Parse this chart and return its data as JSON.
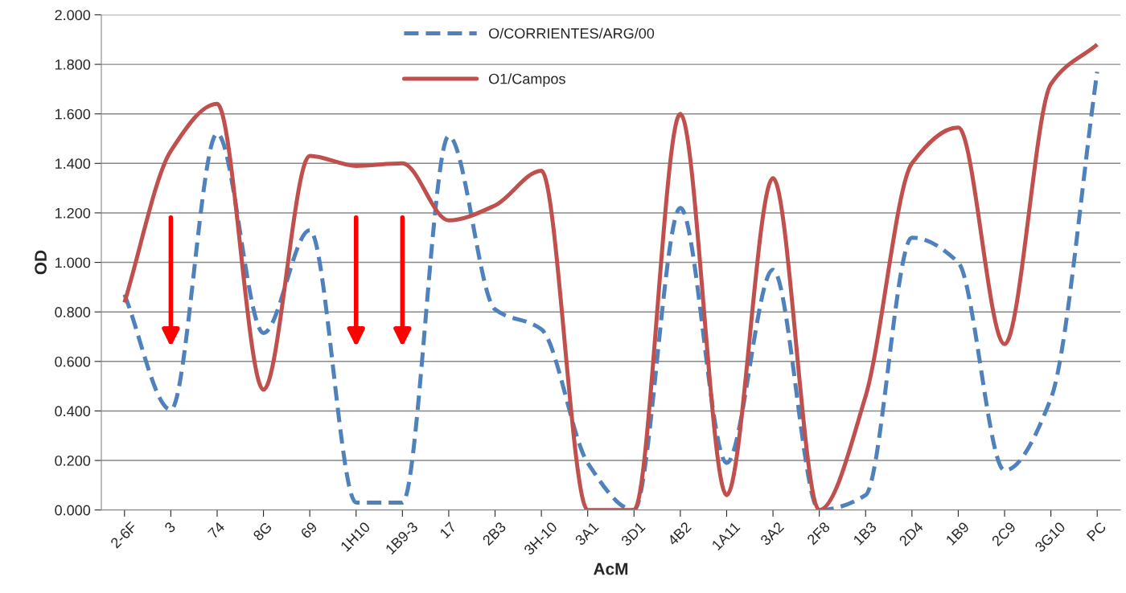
{
  "chart_data": {
    "type": "line",
    "xlabel": "AcM",
    "ylabel": "OD",
    "categories": [
      "2-6F",
      "3",
      "74",
      "8G",
      "69",
      "1H10",
      "1B9-3",
      "17",
      "2B3",
      "3H-10",
      "3A1",
      "3D1",
      "4B2",
      "1A11",
      "3A2",
      "2F8",
      "1B3",
      "2D4",
      "1B9",
      "2C9",
      "3G10",
      "PC"
    ],
    "series": [
      {
        "name": "O/CORRIENTES/ARG/00",
        "color": "#4f81bd",
        "line_style": "dashed",
        "values": [
          0.87,
          0.405,
          1.52,
          0.715,
          1.13,
          0.03,
          0.03,
          1.51,
          0.81,
          0.73,
          0.19,
          0.0,
          1.22,
          0.19,
          0.97,
          0.0,
          0.06,
          1.1,
          1.0,
          0.16,
          0.45,
          1.77
        ]
      },
      {
        "name": "O1/Campos",
        "color": "#c0504d",
        "line_style": "solid",
        "values": [
          0.838,
          1.45,
          1.64,
          0.486,
          1.43,
          1.39,
          1.4,
          1.17,
          1.23,
          1.37,
          0.0,
          0.0,
          1.6,
          0.06,
          1.34,
          0.0,
          0.46,
          1.4,
          1.545,
          0.67,
          1.72,
          1.88
        ]
      }
    ],
    "ylim": [
      0,
      2
    ],
    "yticks": [
      {
        "value": 0,
        "label": "0.000"
      },
      {
        "value": 0.2,
        "label": "0.200"
      },
      {
        "value": 0.4,
        "label": "0.400"
      },
      {
        "value": 0.6,
        "label": "0.600"
      },
      {
        "value": 0.8,
        "label": "0.800"
      },
      {
        "value": 1.0,
        "label": "1.000"
      },
      {
        "value": 1.2,
        "label": "1.200"
      },
      {
        "value": 1.4,
        "label": "1.400"
      },
      {
        "value": 1.6,
        "label": "1.600"
      },
      {
        "value": 1.8,
        "label": "1.800"
      },
      {
        "value": 2.0,
        "label": "2.000"
      }
    ],
    "grid": "y",
    "legend": "top",
    "marker": "none"
  }
}
